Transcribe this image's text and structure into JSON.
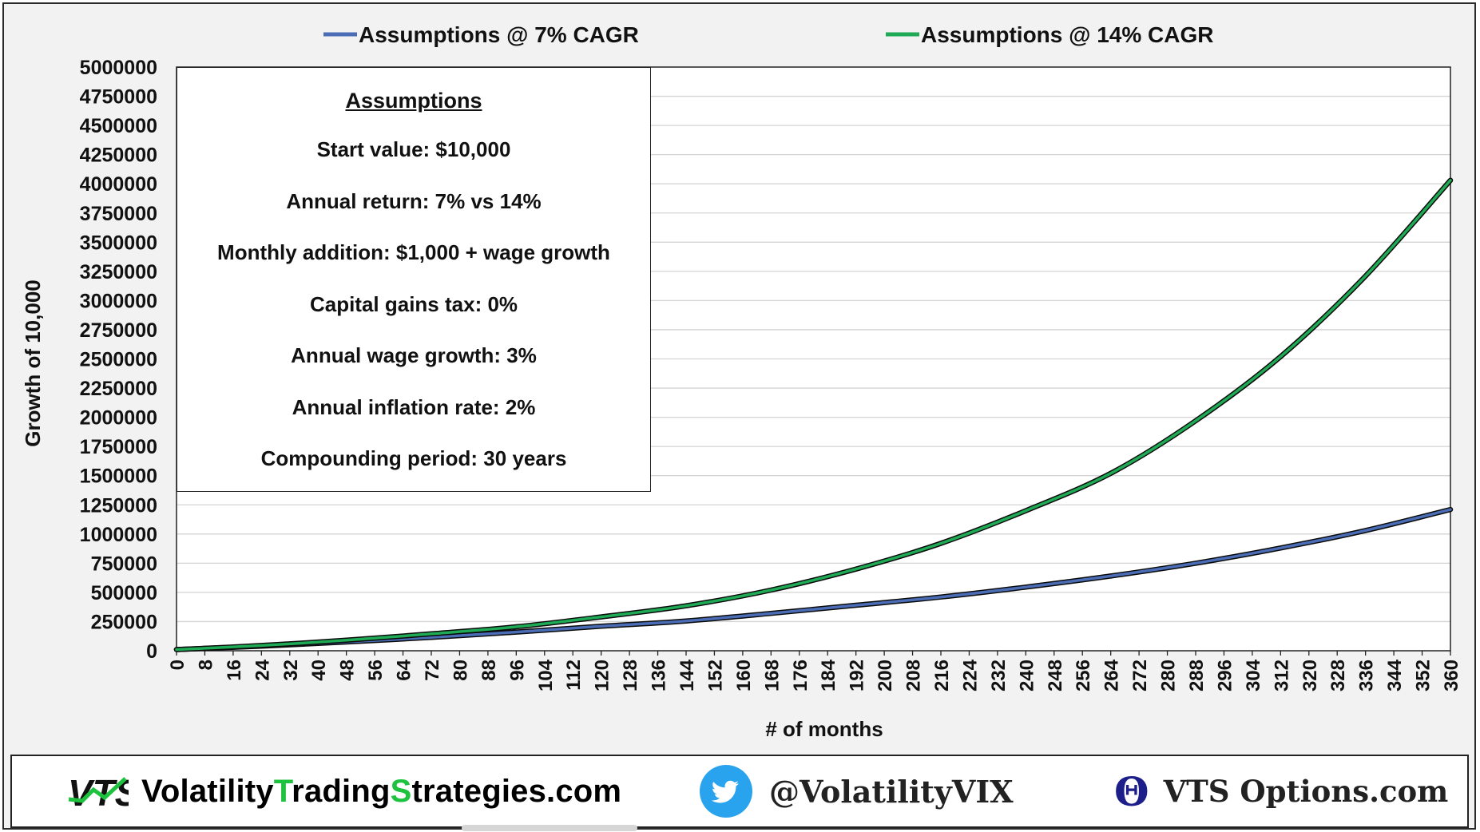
{
  "chart_data": {
    "type": "line",
    "xlabel": "# of months",
    "ylabel": "Growth of 10,000",
    "xlim": [
      0,
      360
    ],
    "ylim": [
      0,
      5000000
    ],
    "x_ticks": [
      0,
      8,
      16,
      24,
      32,
      40,
      48,
      56,
      64,
      72,
      80,
      88,
      96,
      104,
      112,
      120,
      128,
      136,
      144,
      152,
      160,
      168,
      176,
      184,
      192,
      200,
      208,
      216,
      224,
      232,
      240,
      248,
      256,
      264,
      272,
      280,
      288,
      296,
      304,
      312,
      320,
      328,
      336,
      344,
      352,
      360
    ],
    "y_ticks": [
      0,
      250000,
      500000,
      750000,
      1000000,
      1250000,
      1500000,
      1750000,
      2000000,
      2250000,
      2500000,
      2750000,
      3000000,
      3250000,
      3500000,
      3750000,
      4000000,
      4250000,
      4500000,
      4750000,
      5000000
    ],
    "y_tick_labels": [
      "0",
      "250000",
      "500000",
      "750000",
      "1000000",
      "1250000",
      "1500000",
      "1750000",
      "2000000",
      "2250000",
      "2500000",
      "2750000",
      "3000000",
      "3250000",
      "3500000",
      "3750000",
      "4000000",
      "4250000",
      "4500000",
      "4750000",
      "5000000"
    ],
    "grid": "horizontal",
    "legend_position": "top",
    "series": [
      {
        "name": "Assumptions @ 7% CAGR",
        "color": "#4a6db5",
        "x": [
          0,
          24,
          48,
          72,
          96,
          120,
          144,
          168,
          192,
          216,
          240,
          264,
          288,
          312,
          336,
          360
        ],
        "values": [
          10000,
          40000,
          75000,
          115000,
          160000,
          210000,
          255000,
          320000,
          390000,
          460000,
          545000,
          640000,
          750000,
          880000,
          1030000,
          1210000
        ]
      },
      {
        "name": "Assumptions @ 14% CAGR",
        "color": "#1faa55",
        "x": [
          0,
          24,
          48,
          72,
          96,
          120,
          144,
          168,
          192,
          216,
          240,
          264,
          288,
          312,
          336,
          360
        ],
        "values": [
          10000,
          45000,
          90000,
          145000,
          205000,
          290000,
          385000,
          520000,
          700000,
          920000,
          1200000,
          1520000,
          1970000,
          2520000,
          3210000,
          4030000
        ]
      }
    ]
  },
  "assumptions_box": {
    "title": "Assumptions",
    "lines": [
      "Start value:  $10,000",
      "Annual return:  7%  vs  14%",
      "Monthly addition:  $1,000 + wage growth",
      "Capital gains tax:  0%",
      "Annual wage growth:  3%",
      "Annual inflation rate:  2%",
      "Compounding period:  30 years"
    ]
  },
  "footer": {
    "site_parts": [
      {
        "text": "Volatility",
        "accent": false
      },
      {
        "text": "T",
        "accent": true
      },
      {
        "text": "rading",
        "accent": false
      },
      {
        "text": "S",
        "accent": true
      },
      {
        "text": "trategies.com",
        "accent": false
      }
    ],
    "logo_letters": "VTS",
    "twitter_handle": "@VolatilityVIX",
    "options_site": "VTS Options.com",
    "accent_color": "#1fc23f",
    "twitter_color": "#2aa3ef",
    "theta_color": "#1c1f8a",
    "theta_glyph": "Θ"
  }
}
